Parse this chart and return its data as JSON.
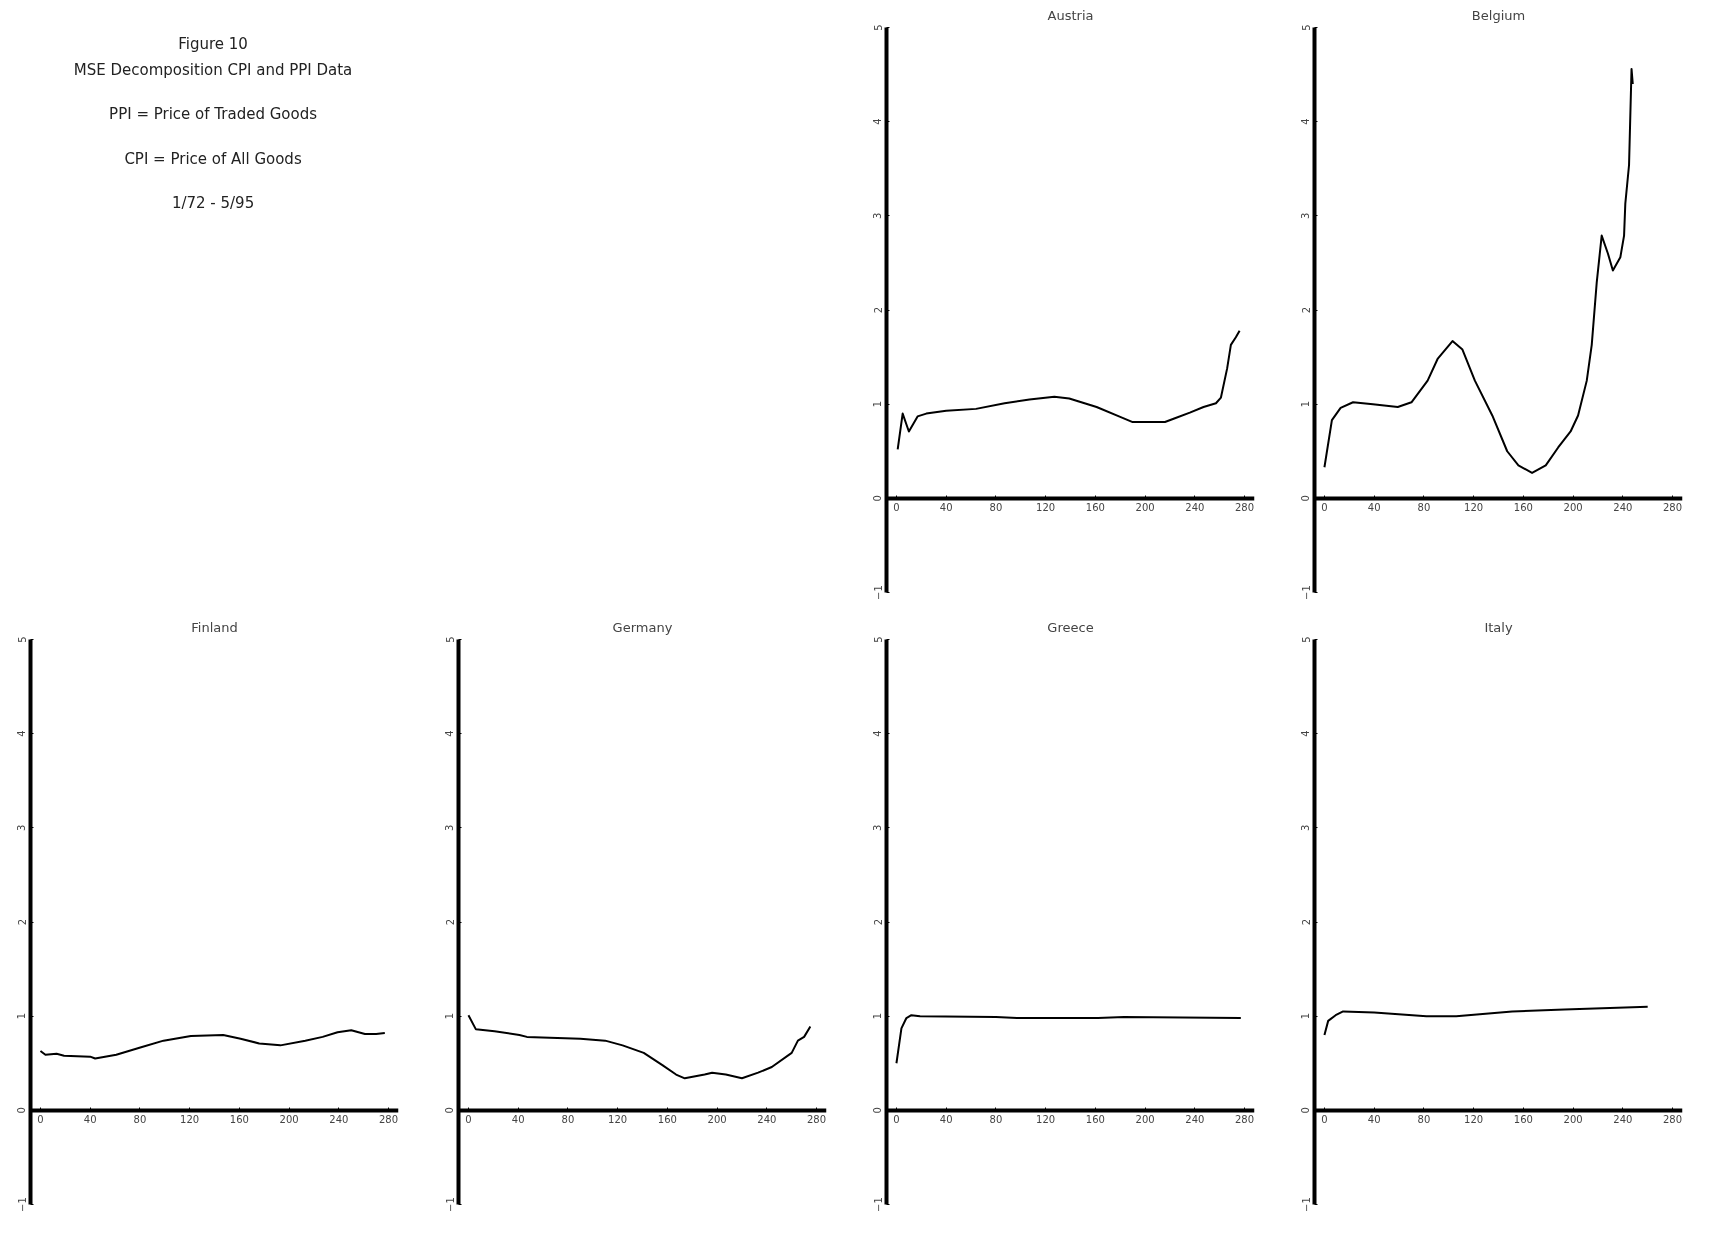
{
  "chart_data": [
    {
      "type": "other",
      "title": "Figure 10",
      "subtitle": "MSE Decomposition CPI and PPI Data",
      "annotations": [
        "PPI = Price of Traded Goods",
        "CPI = Price of All Goods",
        "1/72 - 5/95"
      ]
    },
    {
      "type": "line",
      "title": "Austria",
      "color": "#000000",
      "xlim": [
        -8,
        288
      ],
      "ylim": [
        -1,
        5
      ],
      "xticks": [
        0,
        40,
        80,
        120,
        160,
        200,
        240,
        280
      ],
      "yticks": [
        -1,
        0,
        1,
        2,
        3,
        4,
        5
      ],
      "x": [
        1,
        5,
        10,
        17,
        24,
        40,
        64,
        87,
        107,
        127,
        139,
        161,
        179,
        190,
        216,
        224,
        236,
        247,
        257,
        261,
        266,
        269,
        273,
        276
      ],
      "values": [
        0.52,
        0.9,
        0.71,
        0.87,
        0.9,
        0.93,
        0.95,
        1.01,
        1.05,
        1.08,
        1.06,
        0.97,
        0.87,
        0.81,
        0.81,
        0.85,
        0.91,
        0.97,
        1.01,
        1.07,
        1.38,
        1.63,
        1.71,
        1.78
      ]
    },
    {
      "type": "line",
      "title": "Belgium",
      "color": "#000000",
      "xlim": [
        -8,
        288
      ],
      "ylim": [
        -1,
        5
      ],
      "xticks": [
        0,
        40,
        80,
        120,
        160,
        200,
        240,
        280
      ],
      "yticks": [
        -1,
        0,
        1,
        2,
        3,
        4,
        5
      ],
      "x": [
        0,
        6,
        13,
        23,
        39,
        59,
        70,
        83,
        91,
        103,
        111,
        121,
        135,
        147,
        156,
        167,
        178,
        188,
        198,
        204,
        211,
        215,
        219,
        223,
        228,
        232,
        238,
        241,
        242,
        245,
        247,
        248
      ],
      "values": [
        0.33,
        0.83,
        0.96,
        1.02,
        1.0,
        0.97,
        1.02,
        1.25,
        1.48,
        1.67,
        1.58,
        1.25,
        0.88,
        0.5,
        0.35,
        0.27,
        0.35,
        0.54,
        0.71,
        0.88,
        1.25,
        1.63,
        2.29,
        2.79,
        2.6,
        2.42,
        2.56,
        2.79,
        3.13,
        3.54,
        4.56,
        4.4
      ]
    },
    {
      "type": "line",
      "title": "Finland",
      "color": "#000000",
      "xlim": [
        -8,
        288
      ],
      "ylim": [
        -1,
        5
      ],
      "xticks": [
        0,
        40,
        80,
        120,
        160,
        200,
        240,
        280
      ],
      "yticks": [
        -1,
        0,
        1,
        2,
        3,
        4,
        5
      ],
      "x": [
        0,
        4,
        13,
        19,
        40,
        44,
        61,
        81,
        99,
        121,
        147,
        161,
        176,
        193,
        213,
        227,
        239,
        250,
        261,
        270,
        277
      ],
      "values": [
        0.63,
        0.59,
        0.6,
        0.58,
        0.57,
        0.55,
        0.59,
        0.67,
        0.74,
        0.79,
        0.8,
        0.76,
        0.71,
        0.69,
        0.74,
        0.78,
        0.83,
        0.85,
        0.81,
        0.81,
        0.82
      ]
    },
    {
      "type": "line",
      "title": "Germany",
      "color": "#000000",
      "xlim": [
        -8,
        288
      ],
      "ylim": [
        -1,
        5
      ],
      "xticks": [
        0,
        40,
        80,
        120,
        160,
        200,
        240,
        280
      ],
      "yticks": [
        -1,
        0,
        1,
        2,
        3,
        4,
        5
      ],
      "x": [
        0,
        6,
        21,
        41,
        47,
        90,
        110,
        124,
        141,
        156,
        167,
        174,
        190,
        196,
        207,
        220,
        233,
        244,
        260,
        265,
        270,
        275
      ],
      "values": [
        1.01,
        0.86,
        0.84,
        0.8,
        0.78,
        0.76,
        0.74,
        0.69,
        0.61,
        0.48,
        0.38,
        0.34,
        0.38,
        0.4,
        0.38,
        0.34,
        0.4,
        0.46,
        0.61,
        0.74,
        0.78,
        0.89
      ]
    },
    {
      "type": "line",
      "title": "Greece",
      "color": "#000000",
      "xlim": [
        -8,
        288
      ],
      "ylim": [
        -1,
        5
      ],
      "xticks": [
        0,
        40,
        80,
        120,
        160,
        200,
        240,
        280
      ],
      "yticks": [
        -1,
        0,
        1,
        2,
        3,
        4,
        5
      ],
      "x": [
        0,
        4,
        8,
        12,
        19,
        80,
        97,
        162,
        183,
        277
      ],
      "values": [
        0.5,
        0.87,
        0.98,
        1.01,
        1.0,
        0.99,
        0.98,
        0.98,
        0.99,
        0.98
      ]
    },
    {
      "type": "line",
      "title": "Italy",
      "color": "#000000",
      "xlim": [
        -8,
        288
      ],
      "ylim": [
        -1,
        5
      ],
      "xticks": [
        0,
        40,
        80,
        120,
        160,
        200,
        240,
        280
      ],
      "yticks": [
        -1,
        0,
        1,
        2,
        3,
        4,
        5
      ],
      "x": [
        0,
        3,
        9,
        15,
        40,
        82,
        106,
        151,
        193,
        260
      ],
      "values": [
        0.8,
        0.95,
        1.01,
        1.05,
        1.04,
        1.0,
        1.0,
        1.05,
        1.07,
        1.1
      ]
    }
  ]
}
